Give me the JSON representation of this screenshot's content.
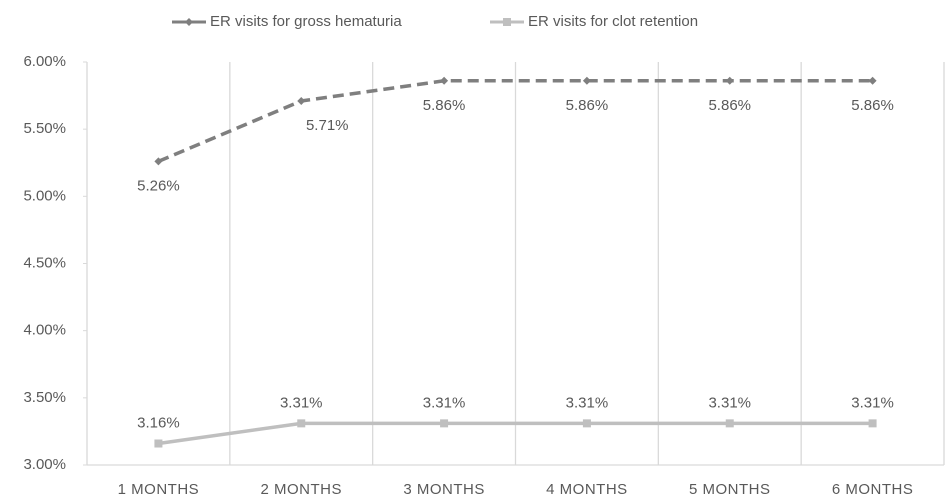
{
  "chart_data": {
    "type": "line",
    "categories": [
      "1 MONTHS",
      "2 MONTHS",
      "3 MONTHS",
      "4 MONTHS",
      "5 MONTHS",
      "6 MONTHS"
    ],
    "series": [
      {
        "name": "ER visits for gross hematuria",
        "color": "#7f7f7f",
        "values": [
          5.26,
          5.71,
          5.86,
          5.86,
          5.86,
          5.86
        ],
        "value_labels": [
          "5.26%",
          "5.71%",
          "5.86%",
          "5.86%",
          "5.86%",
          "5.86%"
        ]
      },
      {
        "name": "ER visits for clot retention",
        "color": "#bfbfbf",
        "values": [
          3.16,
          3.31,
          3.31,
          3.31,
          3.31,
          3.31
        ],
        "value_labels": [
          "3.16%",
          "3.31%",
          "3.31%",
          "3.31%",
          "3.31%",
          "3.31%"
        ]
      }
    ],
    "ylim": [
      3,
      6
    ],
    "yticks": [
      {
        "value": 3,
        "label": "3.00%"
      },
      {
        "value": 3.5,
        "label": "3.50%"
      },
      {
        "value": 4,
        "label": "4.00%"
      },
      {
        "value": 4.5,
        "label": "4.50%"
      },
      {
        "value": 5,
        "label": "5.00%"
      },
      {
        "value": 5.5,
        "label": "5.50%"
      },
      {
        "value": 6,
        "label": "6.00%"
      }
    ],
    "legend": "top"
  }
}
